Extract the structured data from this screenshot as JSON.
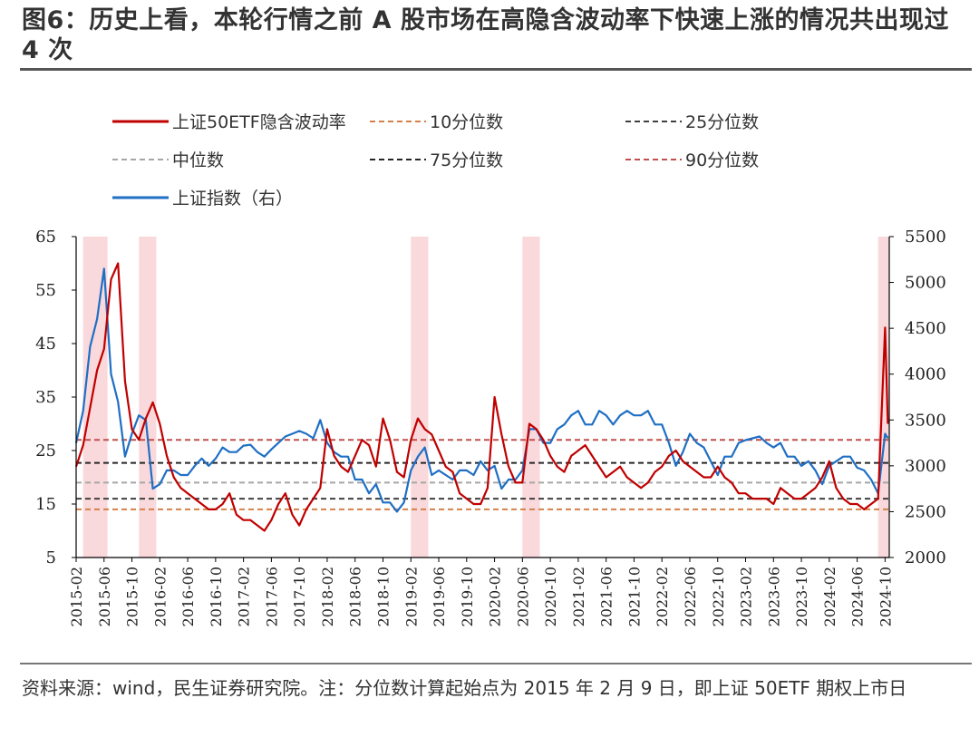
{
  "title": "图6：历史上看，本轮行情之前 A 股市场在高隐含波动率下快速上涨的情况共出现过 4 次",
  "source": "资料来源：wind，民生证券研究院。注：分位数计算起始点为 2015 年 2 月 9 日，即上证 50ETF 期权上市日",
  "chart_data": {
    "type": "line",
    "xlabels": [
      "2015-02",
      "2015-06",
      "2015-10",
      "2016-02",
      "2016-06",
      "2016-10",
      "2017-02",
      "2017-06",
      "2017-10",
      "2018-02",
      "2018-06",
      "2018-10",
      "2019-02",
      "2019-06",
      "2019-10",
      "2020-02",
      "2020-06",
      "2020-10",
      "2021-02",
      "2021-06",
      "2021-10",
      "2022-02",
      "2022-06",
      "2022-10",
      "2023-02",
      "2023-06",
      "2023-10",
      "2024-02",
      "2024-06",
      "2024-10"
    ],
    "x_start": "2015-02",
    "x_end": "2024-10",
    "y_left": {
      "min": 5,
      "max": 65,
      "ticks": [
        5,
        15,
        25,
        35,
        45,
        55,
        65
      ]
    },
    "y_right": {
      "min": 2000,
      "max": 5500,
      "ticks": [
        2000,
        2500,
        3000,
        3500,
        4000,
        4500,
        5000,
        5500
      ]
    },
    "grid": false,
    "legend_position": "top",
    "legend": [
      {
        "name": "上证50ETF隐含波动率",
        "color": "#C00000",
        "style": "solid"
      },
      {
        "name": "10分位数",
        "color": "#D5804A",
        "style": "dashed"
      },
      {
        "name": "25分位数",
        "color": "#404040",
        "style": "dashed"
      },
      {
        "name": "中位数",
        "color": "#A6A6A6",
        "style": "dashed"
      },
      {
        "name": "75分位数",
        "color": "#262626",
        "style": "dashed"
      },
      {
        "name": "90分位数",
        "color": "#C0504D",
        "style": "dashed"
      },
      {
        "name": "上证指数（右）",
        "color": "#1F6FC4",
        "style": "solid"
      }
    ],
    "reference_lines": [
      {
        "name": "10分位数",
        "value": 14,
        "color": "#D5804A"
      },
      {
        "name": "25分位数",
        "value": 16,
        "color": "#404040"
      },
      {
        "name": "中位数",
        "value": 19,
        "color": "#A6A6A6"
      },
      {
        "name": "75分位数",
        "value": 22.7,
        "color": "#262626"
      },
      {
        "name": "90分位数",
        "value": 27,
        "color": "#C0504D"
      }
    ],
    "shaded_periods": [
      {
        "start": "2015-03",
        "end": "2015-06"
      },
      {
        "start": "2015-11",
        "end": "2016-01"
      },
      {
        "start": "2019-02",
        "end": "2019-04"
      },
      {
        "start": "2020-06",
        "end": "2020-08"
      },
      {
        "start": "2024-09",
        "end": "2024-10"
      }
    ],
    "series": [
      {
        "name": "上证50ETF隐含波动率",
        "axis": "left",
        "color": "#C00000",
        "points": [
          [
            "2015-02",
            22
          ],
          [
            "2015-03",
            26
          ],
          [
            "2015-04",
            33
          ],
          [
            "2015-05",
            40
          ],
          [
            "2015-06",
            44
          ],
          [
            "2015-07",
            57
          ],
          [
            "2015-08",
            60
          ],
          [
            "2015-09",
            38
          ],
          [
            "2015-10",
            29
          ],
          [
            "2015-11",
            27
          ],
          [
            "2015-12",
            31
          ],
          [
            "2016-01",
            34
          ],
          [
            "2016-02",
            30
          ],
          [
            "2016-03",
            24
          ],
          [
            "2016-04",
            20
          ],
          [
            "2016-05",
            18
          ],
          [
            "2016-06",
            17
          ],
          [
            "2016-07",
            16
          ],
          [
            "2016-08",
            15
          ],
          [
            "2016-09",
            14
          ],
          [
            "2016-10",
            14
          ],
          [
            "2016-11",
            15
          ],
          [
            "2016-12",
            17
          ],
          [
            "2017-01",
            13
          ],
          [
            "2017-02",
            12
          ],
          [
            "2017-03",
            12
          ],
          [
            "2017-04",
            11
          ],
          [
            "2017-05",
            10
          ],
          [
            "2017-06",
            12
          ],
          [
            "2017-07",
            15
          ],
          [
            "2017-08",
            17
          ],
          [
            "2017-09",
            13
          ],
          [
            "2017-10",
            11
          ],
          [
            "2017-11",
            14
          ],
          [
            "2017-12",
            16
          ],
          [
            "2018-01",
            18
          ],
          [
            "2018-02",
            29
          ],
          [
            "2018-03",
            24
          ],
          [
            "2018-04",
            22
          ],
          [
            "2018-05",
            21
          ],
          [
            "2018-06",
            24
          ],
          [
            "2018-07",
            27
          ],
          [
            "2018-08",
            26
          ],
          [
            "2018-09",
            22
          ],
          [
            "2018-10",
            31
          ],
          [
            "2018-11",
            27
          ],
          [
            "2018-12",
            21
          ],
          [
            "2019-01",
            20
          ],
          [
            "2019-02",
            27
          ],
          [
            "2019-03",
            31
          ],
          [
            "2019-04",
            29
          ],
          [
            "2019-05",
            28
          ],
          [
            "2019-06",
            25
          ],
          [
            "2019-07",
            22
          ],
          [
            "2019-08",
            21
          ],
          [
            "2019-09",
            17
          ],
          [
            "2019-10",
            16
          ],
          [
            "2019-11",
            15
          ],
          [
            "2019-12",
            15
          ],
          [
            "2020-01",
            18
          ],
          [
            "2020-02",
            35
          ],
          [
            "2020-03",
            28
          ],
          [
            "2020-04",
            22
          ],
          [
            "2020-05",
            19
          ],
          [
            "2020-06",
            19
          ],
          [
            "2020-07",
            30
          ],
          [
            "2020-08",
            29
          ],
          [
            "2020-09",
            27
          ],
          [
            "2020-10",
            24
          ],
          [
            "2020-11",
            22
          ],
          [
            "2020-12",
            21
          ],
          [
            "2021-01",
            24
          ],
          [
            "2021-02",
            25
          ],
          [
            "2021-03",
            26
          ],
          [
            "2021-04",
            24
          ],
          [
            "2021-05",
            22
          ],
          [
            "2021-06",
            20
          ],
          [
            "2021-07",
            21
          ],
          [
            "2021-08",
            22
          ],
          [
            "2021-09",
            20
          ],
          [
            "2021-10",
            19
          ],
          [
            "2021-11",
            18
          ],
          [
            "2021-12",
            19
          ],
          [
            "2022-01",
            21
          ],
          [
            "2022-02",
            22
          ],
          [
            "2022-03",
            24
          ],
          [
            "2022-04",
            25
          ],
          [
            "2022-05",
            23
          ],
          [
            "2022-06",
            22
          ],
          [
            "2022-07",
            21
          ],
          [
            "2022-08",
            20
          ],
          [
            "2022-09",
            20
          ],
          [
            "2022-10",
            22
          ],
          [
            "2022-11",
            20
          ],
          [
            "2022-12",
            19
          ],
          [
            "2023-01",
            17
          ],
          [
            "2023-02",
            17
          ],
          [
            "2023-03",
            16
          ],
          [
            "2023-04",
            16
          ],
          [
            "2023-05",
            16
          ],
          [
            "2023-06",
            15
          ],
          [
            "2023-07",
            18
          ],
          [
            "2023-08",
            17
          ],
          [
            "2023-09",
            16
          ],
          [
            "2023-10",
            16
          ],
          [
            "2023-11",
            17
          ],
          [
            "2023-12",
            18
          ],
          [
            "2024-01",
            20
          ],
          [
            "2024-02",
            23
          ],
          [
            "2024-03",
            18
          ],
          [
            "2024-04",
            16
          ],
          [
            "2024-05",
            15
          ],
          [
            "2024-06",
            15
          ],
          [
            "2024-07",
            14
          ],
          [
            "2024-08",
            15
          ],
          [
            "2024-09",
            16
          ],
          [
            "2024-10",
            48
          ],
          [
            "2024-10",
            30
          ]
        ]
      },
      {
        "name": "上证指数（右）",
        "axis": "right",
        "color": "#1F6FC4",
        "points": [
          [
            "2015-02",
            3250
          ],
          [
            "2015-03",
            3600
          ],
          [
            "2015-04",
            4300
          ],
          [
            "2015-05",
            4600
          ],
          [
            "2015-06",
            5150
          ],
          [
            "2015-07",
            4000
          ],
          [
            "2015-08",
            3700
          ],
          [
            "2015-09",
            3100
          ],
          [
            "2015-10",
            3350
          ],
          [
            "2015-11",
            3550
          ],
          [
            "2015-12",
            3500
          ],
          [
            "2016-01",
            2750
          ],
          [
            "2016-02",
            2800
          ],
          [
            "2016-03",
            2950
          ],
          [
            "2016-04",
            2950
          ],
          [
            "2016-05",
            2900
          ],
          [
            "2016-06",
            2900
          ],
          [
            "2016-07",
            3000
          ],
          [
            "2016-08",
            3080
          ],
          [
            "2016-09",
            3000
          ],
          [
            "2016-10",
            3080
          ],
          [
            "2016-11",
            3200
          ],
          [
            "2016-12",
            3150
          ],
          [
            "2017-01",
            3150
          ],
          [
            "2017-02",
            3220
          ],
          [
            "2017-03",
            3230
          ],
          [
            "2017-04",
            3150
          ],
          [
            "2017-05",
            3100
          ],
          [
            "2017-06",
            3180
          ],
          [
            "2017-07",
            3250
          ],
          [
            "2017-08",
            3320
          ],
          [
            "2017-09",
            3350
          ],
          [
            "2017-10",
            3380
          ],
          [
            "2017-11",
            3350
          ],
          [
            "2017-12",
            3300
          ],
          [
            "2018-01",
            3500
          ],
          [
            "2018-02",
            3250
          ],
          [
            "2018-03",
            3150
          ],
          [
            "2018-04",
            3100
          ],
          [
            "2018-05",
            3100
          ],
          [
            "2018-06",
            2850
          ],
          [
            "2018-07",
            2850
          ],
          [
            "2018-08",
            2700
          ],
          [
            "2018-09",
            2800
          ],
          [
            "2018-10",
            2600
          ],
          [
            "2018-11",
            2600
          ],
          [
            "2018-12",
            2500
          ],
          [
            "2019-01",
            2600
          ],
          [
            "2019-02",
            2950
          ],
          [
            "2019-03",
            3100
          ],
          [
            "2019-04",
            3200
          ],
          [
            "2019-05",
            2900
          ],
          [
            "2019-06",
            2950
          ],
          [
            "2019-07",
            2900
          ],
          [
            "2019-08",
            2850
          ],
          [
            "2019-09",
            2950
          ],
          [
            "2019-10",
            2950
          ],
          [
            "2019-11",
            2900
          ],
          [
            "2019-12",
            3050
          ],
          [
            "2020-01",
            2950
          ],
          [
            "2020-02",
            3000
          ],
          [
            "2020-03",
            2750
          ],
          [
            "2020-04",
            2850
          ],
          [
            "2020-05",
            2850
          ],
          [
            "2020-06",
            2950
          ],
          [
            "2020-07",
            3400
          ],
          [
            "2020-08",
            3400
          ],
          [
            "2020-09",
            3250
          ],
          [
            "2020-10",
            3250
          ],
          [
            "2020-11",
            3400
          ],
          [
            "2020-12",
            3450
          ],
          [
            "2021-01",
            3550
          ],
          [
            "2021-02",
            3600
          ],
          [
            "2021-03",
            3450
          ],
          [
            "2021-04",
            3450
          ],
          [
            "2021-05",
            3600
          ],
          [
            "2021-06",
            3550
          ],
          [
            "2021-07",
            3450
          ],
          [
            "2021-08",
            3550
          ],
          [
            "2021-09",
            3600
          ],
          [
            "2021-10",
            3550
          ],
          [
            "2021-11",
            3550
          ],
          [
            "2021-12",
            3600
          ],
          [
            "2022-01",
            3450
          ],
          [
            "2022-02",
            3450
          ],
          [
            "2022-03",
            3250
          ],
          [
            "2022-04",
            3000
          ],
          [
            "2022-05",
            3150
          ],
          [
            "2022-06",
            3350
          ],
          [
            "2022-07",
            3250
          ],
          [
            "2022-08",
            3200
          ],
          [
            "2022-09",
            3050
          ],
          [
            "2022-10",
            2900
          ],
          [
            "2022-11",
            3100
          ],
          [
            "2022-12",
            3100
          ],
          [
            "2023-01",
            3250
          ],
          [
            "2023-02",
            3280
          ],
          [
            "2023-03",
            3300
          ],
          [
            "2023-04",
            3320
          ],
          [
            "2023-05",
            3250
          ],
          [
            "2023-06",
            3200
          ],
          [
            "2023-07",
            3250
          ],
          [
            "2023-08",
            3100
          ],
          [
            "2023-09",
            3100
          ],
          [
            "2023-10",
            3000
          ],
          [
            "2023-11",
            3050
          ],
          [
            "2023-12",
            2950
          ],
          [
            "2024-01",
            2800
          ],
          [
            "2024-02",
            3000
          ],
          [
            "2024-03",
            3050
          ],
          [
            "2024-04",
            3100
          ],
          [
            "2024-05",
            3100
          ],
          [
            "2024-06",
            2980
          ],
          [
            "2024-07",
            2950
          ],
          [
            "2024-08",
            2850
          ],
          [
            "2024-09",
            2700
          ],
          [
            "2024-10",
            3350
          ],
          [
            "2024-10",
            3300
          ]
        ]
      }
    ]
  }
}
